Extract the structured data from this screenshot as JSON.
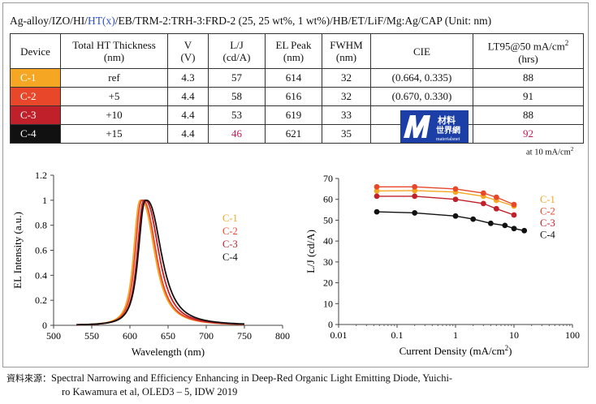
{
  "title_parts": {
    "pre": "Ag-alloy/IZO/HI/",
    "hl": "HT(x)",
    "post": "/EB/TRM-2:TRH-3:FRD-2 (25, 25 wt%, 1 wt%)/HB/ET/LiF/Mg:Ag/CAP (Unit: nm)"
  },
  "colors": {
    "C-1": "#f5a623",
    "C-2": "#e8472a",
    "C-3": "#c0202a",
    "C-4": "#111111"
  },
  "table": {
    "headers": {
      "device": "Device",
      "ht": [
        "Total HT Thickness",
        "(nm)"
      ],
      "v": [
        "V",
        "(V)"
      ],
      "lj": [
        "L/J",
        "(cd/A)"
      ],
      "el": [
        "EL Peak",
        "(nm)"
      ],
      "fwhm": [
        "FWHM",
        "(nm)"
      ],
      "cie": "CIE",
      "lt": [
        "LT95@50 mA/cm",
        "2",
        "(hrs)"
      ]
    },
    "rows": [
      {
        "device": "C-1",
        "ht": "ref",
        "v": "4.3",
        "lj": "57",
        "el": "614",
        "fwhm": "32",
        "cie": "(0.664, 0.335)",
        "lt": "88"
      },
      {
        "device": "C-2",
        "ht": "+5",
        "v": "4.4",
        "lj": "58",
        "el": "616",
        "fwhm": "32",
        "cie": "(0.670, 0.330)",
        "lt": "91"
      },
      {
        "device": "C-3",
        "ht": "+10",
        "v": "4.4",
        "lj": "53",
        "el": "619",
        "fwhm": "33",
        "cie": "",
        "lt": "88"
      },
      {
        "device": "C-4",
        "ht": "+15",
        "v": "4.4",
        "lj": "46",
        "el": "621",
        "fwhm": "35",
        "cie": "",
        "lt": "92"
      }
    ],
    "note_pre": "at 10 mA/cm",
    "note_sup": "2"
  },
  "logo": {
    "line1": "材料",
    "line2": "世界網",
    "line3": "materialsnet"
  },
  "chart_data": [
    {
      "type": "line",
      "xlabel": "Wavelength (nm)",
      "ylabel": "EL Intensity (a.u.)",
      "xlim": [
        500,
        800
      ],
      "ylim": [
        0,
        1.2
      ],
      "xticks": [
        "500",
        "550",
        "600",
        "650",
        "700",
        "750",
        "800"
      ],
      "yticks": [
        "0",
        "0.2",
        "0.4",
        "0.6",
        "0.8",
        "1",
        "1.2"
      ],
      "legend": [
        "C-1",
        "C-2",
        "C-3",
        "C-4"
      ],
      "legend_position": "right",
      "series": [
        {
          "name": "C-1",
          "peak": 614,
          "fwhm": 32
        },
        {
          "name": "C-2",
          "peak": 616,
          "fwhm": 32
        },
        {
          "name": "C-3",
          "peak": 619,
          "fwhm": 33
        },
        {
          "name": "C-4",
          "peak": 621,
          "fwhm": 35
        }
      ]
    },
    {
      "type": "line",
      "xscale": "log",
      "xlabel_pre": "Current Density (mA/cm",
      "xlabel_sup": "2",
      "xlabel_post": ")",
      "ylabel": "L/J (cd/A)",
      "xlim": [
        0.01,
        100
      ],
      "ylim": [
        0,
        70
      ],
      "xticks": [
        "0.01",
        "0.1",
        "1",
        "10",
        "100"
      ],
      "yticks": [
        "0",
        "10",
        "20",
        "30",
        "40",
        "50",
        "60",
        "70"
      ],
      "legend": [
        "C-1",
        "C-2",
        "C-3",
        "C-4"
      ],
      "legend_position": "right",
      "series": [
        {
          "name": "C-1",
          "x": [
            0.045,
            0.2,
            1,
            3,
            5,
            10
          ],
          "y": [
            64,
            64.2,
            63.5,
            61.5,
            59.5,
            56.8
          ]
        },
        {
          "name": "C-2",
          "x": [
            0.045,
            0.2,
            1,
            3,
            5,
            10
          ],
          "y": [
            66,
            66,
            65,
            63,
            61,
            57.5
          ]
        },
        {
          "name": "C-3",
          "x": [
            0.045,
            0.2,
            1,
            3,
            5,
            10
          ],
          "y": [
            61.5,
            61.5,
            60,
            58,
            55.5,
            52.5
          ]
        },
        {
          "name": "C-4",
          "x": [
            0.045,
            0.2,
            1,
            2,
            4,
            7,
            10,
            15
          ],
          "y": [
            54,
            53.5,
            52,
            50.5,
            48.5,
            47.5,
            46,
            45
          ]
        }
      ]
    }
  ],
  "source": {
    "label": "資料來源：",
    "line1": "Spectral Narrowing and Efficiency Enhancing in Deep-Red Organic Light Emitting Diode, Yuichi-",
    "line2": "ro Kawamura et al, OLED3 – 5, IDW 2019"
  }
}
